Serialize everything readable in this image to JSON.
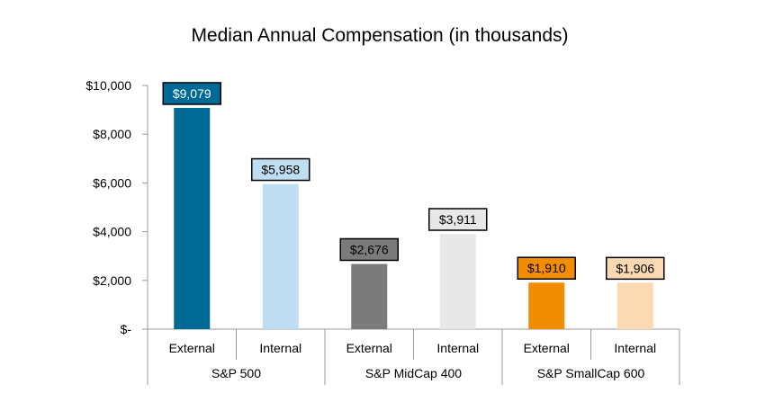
{
  "chart_data": {
    "type": "bar",
    "title": "Median Annual Compensation (in thousands)",
    "xlabel": "",
    "ylabel": "",
    "ylim": [
      0,
      10000
    ],
    "grid": false,
    "y_ticks": [
      {
        "value": 0,
        "label": "$-"
      },
      {
        "value": 2000,
        "label": "$2,000"
      },
      {
        "value": 4000,
        "label": "$4,000"
      },
      {
        "value": 6000,
        "label": "$6,000"
      },
      {
        "value": 8000,
        "label": "$8,000"
      },
      {
        "value": 10000,
        "label": "$10,000"
      }
    ],
    "groups": [
      {
        "name": "S&P 500",
        "bars": [
          {
            "category": "External",
            "value": 9079,
            "label": "$9,079",
            "color": "#006a96",
            "label_bg": "#006a96",
            "label_color": "#ffffff"
          },
          {
            "category": "Internal",
            "value": 5958,
            "label": "$5,958",
            "color": "#c0def2",
            "label_bg": "#c0def2",
            "label_color": "#000000"
          }
        ]
      },
      {
        "name": "S&P MidCap 400",
        "bars": [
          {
            "category": "External",
            "value": 2676,
            "label": "$2,676",
            "color": "#7b7b7b",
            "label_bg": "#7b7b7b",
            "label_color": "#000000"
          },
          {
            "category": "Internal",
            "value": 3911,
            "label": "$3,911",
            "color": "#e8e8e8",
            "label_bg": "#e8e8e8",
            "label_color": "#000000"
          }
        ]
      },
      {
        "name": "S&P SmallCap 600",
        "bars": [
          {
            "category": "External",
            "value": 1910,
            "label": "$1,910",
            "color": "#f28c00",
            "label_bg": "#f28c00",
            "label_color": "#000000"
          },
          {
            "category": "Internal",
            "value": 1906,
            "label": "$1,906",
            "color": "#fad9b3",
            "label_bg": "#fad9b3",
            "label_color": "#000000"
          }
        ]
      }
    ]
  }
}
